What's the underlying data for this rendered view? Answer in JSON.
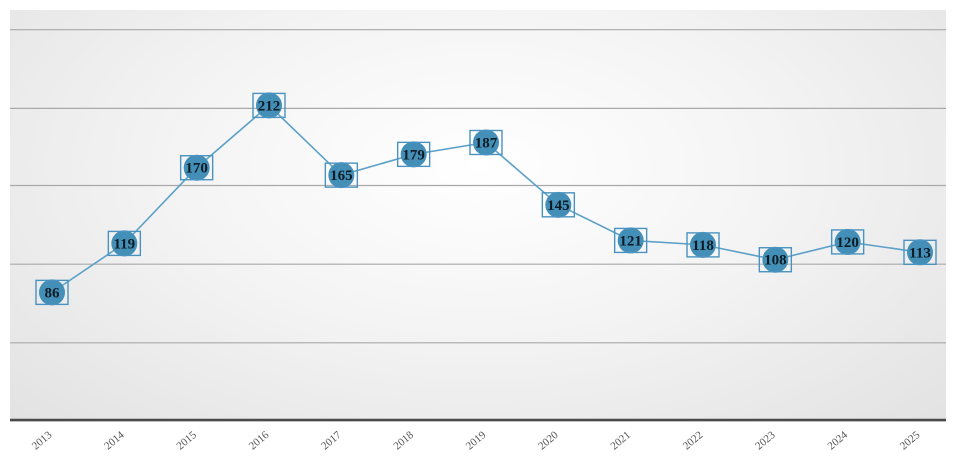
{
  "chart_data": {
    "type": "line",
    "title": "",
    "xlabel": "",
    "ylabel": "",
    "categories": [
      "2013",
      "2014",
      "2015",
      "2016",
      "2017",
      "2018",
      "2019",
      "2020",
      "2021",
      "2022",
      "2023",
      "2024",
      "2025"
    ],
    "series": [
      {
        "values": [
          86,
          119,
          170,
          212,
          165,
          179,
          187,
          145,
          121,
          118,
          108,
          120,
          113
        ]
      }
    ],
    "ylim": [
      0,
      263
    ],
    "y_gridlines": [
      52,
      105,
      158,
      210,
      263
    ],
    "grid": true,
    "legend": "none",
    "colors": {
      "line": "#5aa0c8",
      "marker": "#3a8ab4",
      "label_border": "#4a93c0"
    }
  }
}
